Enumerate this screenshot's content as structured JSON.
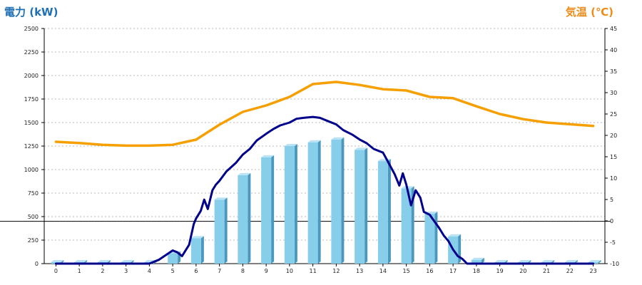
{
  "chart_data": {
    "type": "bar",
    "title": "",
    "y_left_label": "電力 (kW)",
    "y_right_label": "気温 (℃)",
    "categories": [
      "0",
      "1",
      "2",
      "3",
      "4",
      "5",
      "6",
      "7",
      "8",
      "9",
      "10",
      "11",
      "12",
      "13",
      "14",
      "15",
      "16",
      "17",
      "18",
      "19",
      "20",
      "21",
      "22",
      "23"
    ],
    "y_left_ticks": [
      "0",
      "250",
      "500",
      "750",
      "1000",
      "1250",
      "1500",
      "1750",
      "2000",
      "2250",
      "2500"
    ],
    "y_right_ticks": [
      "-10",
      "-5",
      "0",
      "5",
      "10",
      "15",
      "20",
      "25",
      "30",
      "35",
      "40",
      "45"
    ],
    "ylim_left": [
      0,
      2500
    ],
    "ylim_right": [
      -10,
      45
    ],
    "grid": true,
    "reference_line": 450,
    "series": [
      {
        "kind": "bar",
        "axis": "left",
        "color": "#87ceeb",
        "values": [
          15,
          15,
          15,
          15,
          15,
          110,
          270,
          680,
          940,
          1130,
          1250,
          1290,
          1320,
          1210,
          1090,
          800,
          530,
          290,
          40,
          15,
          15,
          15,
          15,
          15
        ]
      },
      {
        "kind": "line",
        "axis": "left",
        "color": "#00008b",
        "x": [
          0,
          1,
          2,
          3,
          4,
          4.4,
          4.7,
          5.0,
          5.2,
          5.4,
          5.7,
          5.9,
          6.0,
          6.2,
          6.35,
          6.5,
          6.7,
          6.85,
          7.0,
          7.3,
          7.7,
          8.0,
          8.3,
          8.6,
          9.0,
          9.3,
          9.6,
          10.0,
          10.3,
          10.6,
          11.0,
          11.3,
          11.7,
          12.0,
          12.3,
          12.7,
          13.0,
          13.3,
          13.6,
          14.0,
          14.2,
          14.5,
          14.7,
          14.85,
          15.0,
          15.2,
          15.4,
          15.6,
          15.75,
          16.0,
          16.2,
          16.4,
          16.6,
          16.8,
          17.0,
          17.2,
          17.4,
          17.6,
          18.0,
          19,
          20,
          21,
          22,
          23
        ],
        "y": [
          0,
          0,
          0,
          0,
          0,
          40,
          90,
          140,
          120,
          80,
          200,
          420,
          480,
          560,
          680,
          580,
          780,
          840,
          880,
          980,
          1070,
          1160,
          1220,
          1310,
          1380,
          1430,
          1470,
          1500,
          1540,
          1550,
          1560,
          1550,
          1510,
          1480,
          1420,
          1370,
          1320,
          1280,
          1220,
          1180,
          1090,
          950,
          830,
          960,
          840,
          620,
          780,
          700,
          550,
          520,
          450,
          380,
          300,
          240,
          150,
          80,
          50,
          0,
          0,
          0,
          0,
          0,
          0,
          0
        ]
      },
      {
        "kind": "line",
        "axis": "right",
        "color": "#f5a000",
        "x": [
          0,
          1,
          2,
          3,
          4,
          5,
          6,
          7,
          8,
          9,
          10,
          11,
          12,
          13,
          14,
          15,
          16,
          17,
          18,
          19,
          20,
          21,
          22,
          23
        ],
        "y": [
          18.5,
          18.2,
          17.8,
          17.6,
          17.6,
          17.8,
          19.0,
          22.5,
          25.5,
          27.0,
          29.0,
          32.0,
          32.5,
          31.8,
          30.8,
          30.5,
          29.0,
          28.7,
          26.8,
          25.0,
          23.8,
          23.0,
          22.6,
          22.2
        ]
      }
    ]
  }
}
